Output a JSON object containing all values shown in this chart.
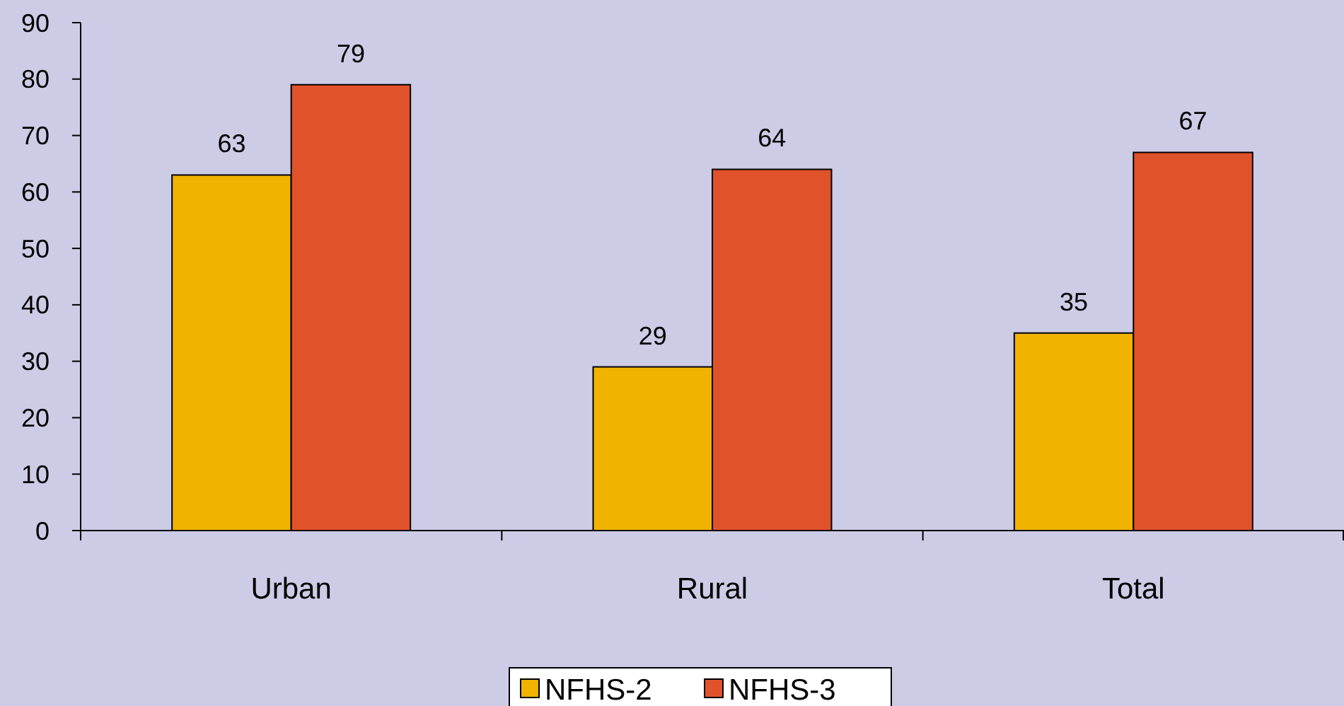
{
  "chart_data": {
    "type": "bar",
    "categories": [
      "Urban",
      "Rural",
      "Total"
    ],
    "series": [
      {
        "name": "NFHS-2",
        "color": "#f0b400",
        "values": [
          63,
          29,
          35
        ]
      },
      {
        "name": "NFHS-3",
        "color": "#e0522a",
        "values": [
          79,
          64,
          67
        ]
      }
    ],
    "ylim": [
      0,
      90
    ],
    "yticks": [
      0,
      10,
      20,
      30,
      40,
      50,
      60,
      70,
      80,
      90
    ],
    "grid": false,
    "legend": "bottom",
    "data_labels": true
  }
}
